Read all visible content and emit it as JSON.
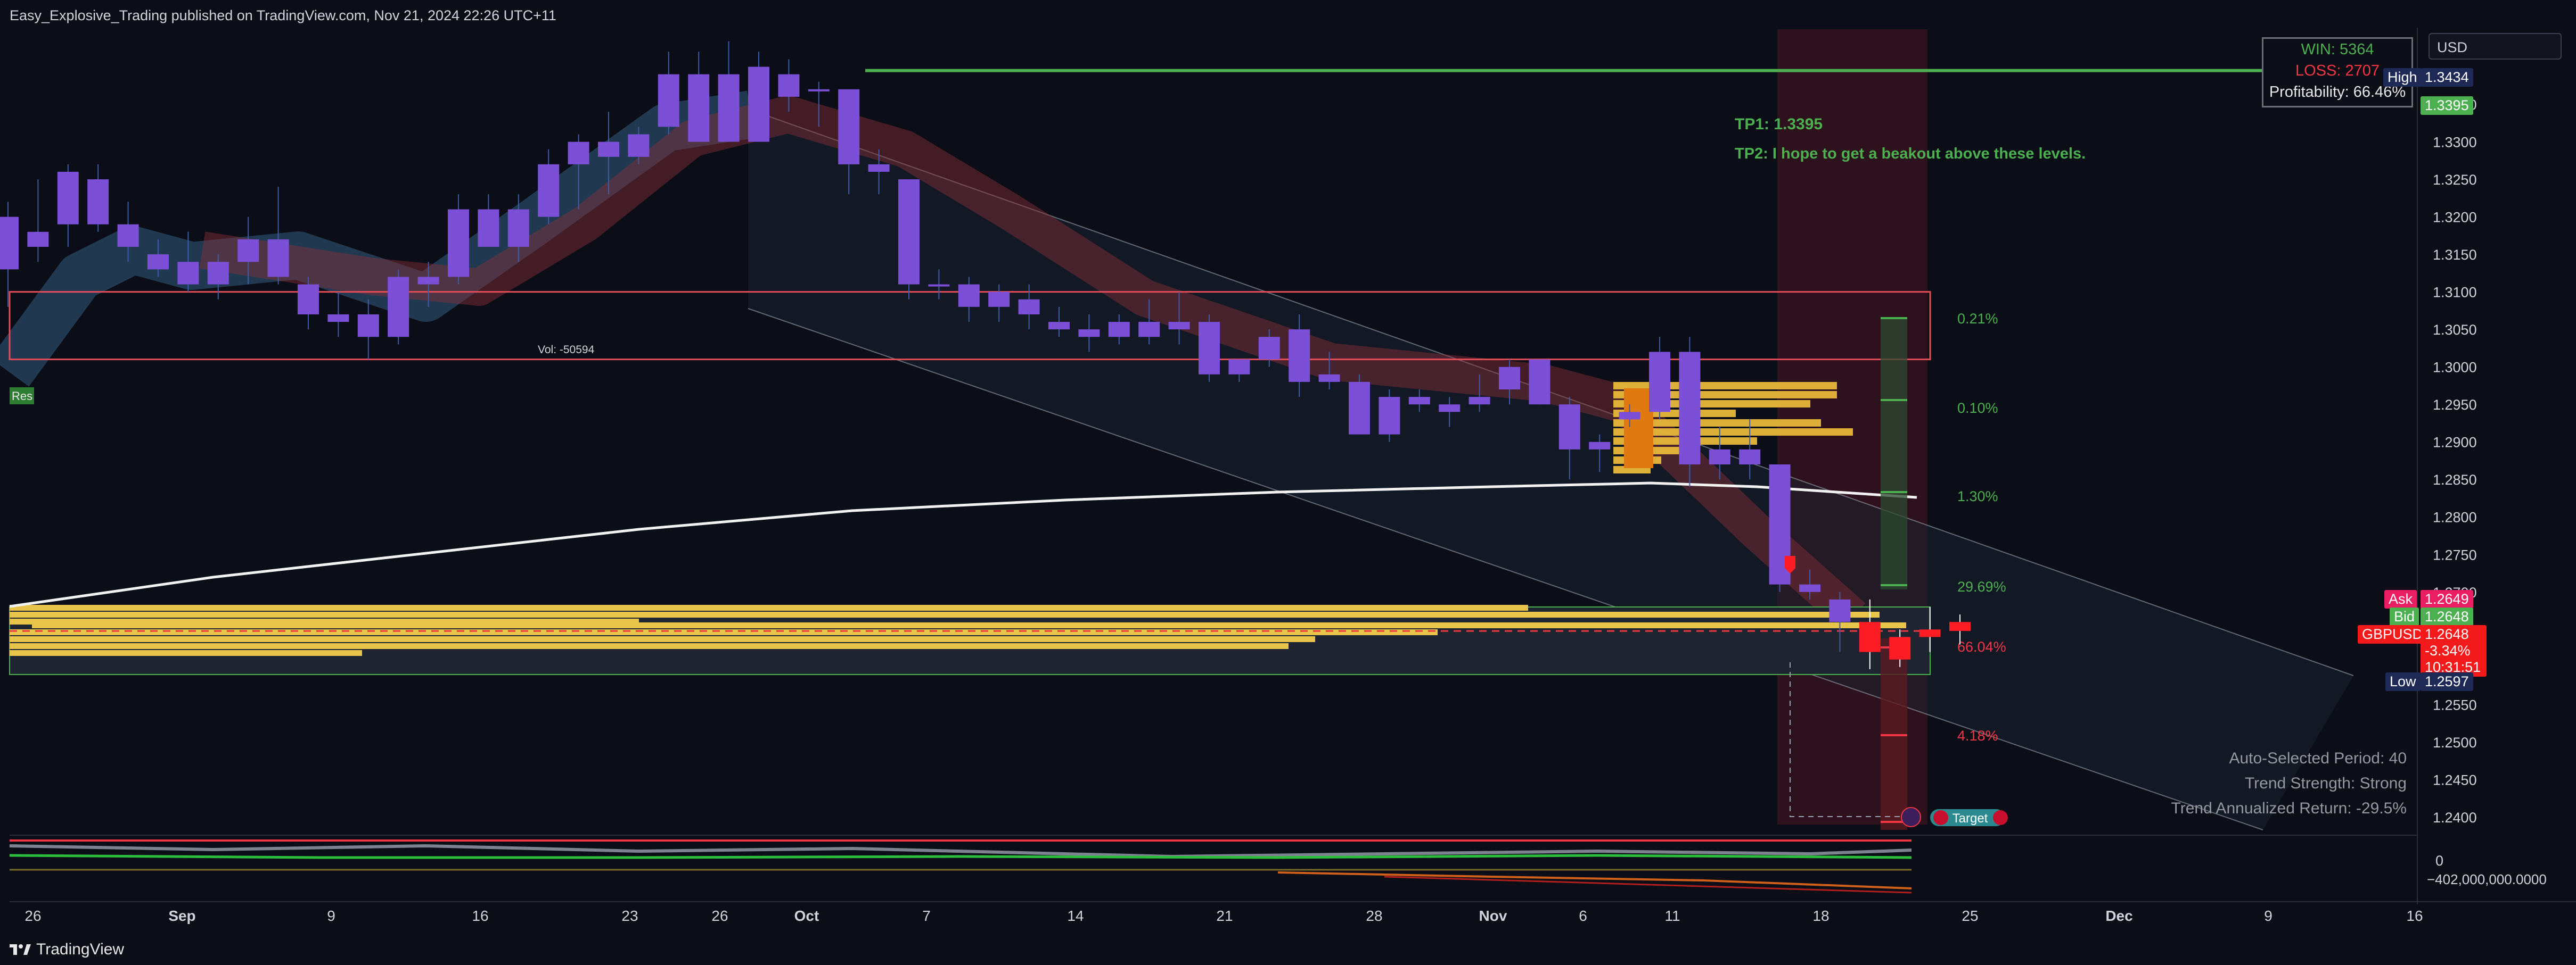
{
  "header": {
    "publisher_line": "Easy_Explosive_Trading published on TradingView.com, Nov 21, 2024 22:26 UTC+11"
  },
  "footer": {
    "brand": "TradingView"
  },
  "currency_button": {
    "label": "USD"
  },
  "stats": {
    "win": "WIN: 5364",
    "loss": "LOSS: 2707",
    "profitability": "Profitability: 66.46%"
  },
  "info_panel": {
    "period": "Auto-Selected Period: 40",
    "strength": "Trend Strength: Strong",
    "annualized": "Trend Annualized Return: -29.5%"
  },
  "annotations": {
    "tp1": "TP1: 1.3395",
    "tp2": "TP2: I hope to get a beakout above these levels.",
    "vol": "Vol: -50594",
    "res": "Res",
    "target": "Target",
    "pct_levels": [
      "0.21%",
      "0.10%",
      "1.30%",
      "29.69%",
      "66.04%",
      "4.18%"
    ]
  },
  "price_labels": {
    "high_tag": "High",
    "high_value": "1.3434",
    "tp_value": "1.3395",
    "ask_tag": "Ask",
    "ask_value": "1.2649",
    "bid_tag": "Bid",
    "bid_value": "1.2648",
    "symbol": "GBPUSD",
    "last": "1.2648",
    "change": "-3.34%",
    "countdown": "10:31:51",
    "low_tag": "Low",
    "low_value": "1.2597",
    "osc_zero": "0",
    "osc_low": "−402,000,000.0000"
  },
  "colors": {
    "background": "#0b0e17",
    "candle": "#7b4fd6",
    "tp_line": "#4caf50",
    "resistance": "#e24d5a",
    "support": "#e6c54a",
    "ema": "#f2f2f2",
    "down": "#ff1d25"
  },
  "chart_data": {
    "type": "candlestick",
    "symbol": "GBPUSD",
    "y_ticks": [
      "1.3350",
      "1.3300",
      "1.3250",
      "1.3200",
      "1.3150",
      "1.3100",
      "1.3050",
      "1.3000",
      "1.2950",
      "1.2900",
      "1.2850",
      "1.2800",
      "1.2750",
      "1.2700",
      "1.2650",
      "1.2600",
      "1.2550",
      "1.2500",
      "1.2450",
      "1.2400"
    ],
    "x_ticks": [
      "26",
      "Sep",
      "9",
      "16",
      "23",
      "26",
      "Oct",
      "7",
      "14",
      "21",
      "28",
      "Nov",
      "6",
      "11",
      "18",
      "25",
      "Dec",
      "9",
      "16"
    ],
    "ylim": [
      1.239,
      1.345
    ],
    "candles": [
      {
        "o": 1.313,
        "h": 1.322,
        "l": 1.308,
        "c": 1.32
      },
      {
        "o": 1.316,
        "h": 1.325,
        "l": 1.314,
        "c": 1.318
      },
      {
        "o": 1.319,
        "h": 1.327,
        "l": 1.316,
        "c": 1.326
      },
      {
        "o": 1.325,
        "h": 1.327,
        "l": 1.318,
        "c": 1.319
      },
      {
        "o": 1.319,
        "h": 1.322,
        "l": 1.314,
        "c": 1.316
      },
      {
        "o": 1.315,
        "h": 1.317,
        "l": 1.312,
        "c": 1.313
      },
      {
        "o": 1.314,
        "h": 1.318,
        "l": 1.31,
        "c": 1.311
      },
      {
        "o": 1.311,
        "h": 1.315,
        "l": 1.309,
        "c": 1.314
      },
      {
        "o": 1.314,
        "h": 1.32,
        "l": 1.311,
        "c": 1.317
      },
      {
        "o": 1.317,
        "h": 1.324,
        "l": 1.311,
        "c": 1.312
      },
      {
        "o": 1.311,
        "h": 1.312,
        "l": 1.305,
        "c": 1.307
      },
      {
        "o": 1.307,
        "h": 1.31,
        "l": 1.304,
        "c": 1.306
      },
      {
        "o": 1.307,
        "h": 1.309,
        "l": 1.301,
        "c": 1.304
      },
      {
        "o": 1.304,
        "h": 1.313,
        "l": 1.303,
        "c": 1.312
      },
      {
        "o": 1.312,
        "h": 1.314,
        "l": 1.308,
        "c": 1.311
      },
      {
        "o": 1.312,
        "h": 1.323,
        "l": 1.311,
        "c": 1.321
      },
      {
        "o": 1.321,
        "h": 1.323,
        "l": 1.316,
        "c": 1.316
      },
      {
        "o": 1.316,
        "h": 1.323,
        "l": 1.314,
        "c": 1.321
      },
      {
        "o": 1.32,
        "h": 1.329,
        "l": 1.319,
        "c": 1.327
      },
      {
        "o": 1.327,
        "h": 1.331,
        "l": 1.321,
        "c": 1.33
      },
      {
        "o": 1.33,
        "h": 1.334,
        "l": 1.323,
        "c": 1.328
      },
      {
        "o": 1.328,
        "h": 1.332,
        "l": 1.327,
        "c": 1.331
      },
      {
        "o": 1.332,
        "h": 1.342,
        "l": 1.331,
        "c": 1.339
      },
      {
        "o": 1.339,
        "h": 1.342,
        "l": 1.33,
        "c": 1.33
      },
      {
        "o": 1.33,
        "h": 1.3434,
        "l": 1.33,
        "c": 1.339
      },
      {
        "o": 1.34,
        "h": 1.342,
        "l": 1.33,
        "c": 1.33
      },
      {
        "o": 1.339,
        "h": 1.341,
        "l": 1.334,
        "c": 1.336
      },
      {
        "o": 1.337,
        "h": 1.338,
        "l": 1.332,
        "c": 1.337
      },
      {
        "o": 1.337,
        "h": 1.337,
        "l": 1.323,
        "c": 1.327
      },
      {
        "o": 1.327,
        "h": 1.329,
        "l": 1.323,
        "c": 1.326
      },
      {
        "o": 1.325,
        "h": 1.325,
        "l": 1.309,
        "c": 1.311
      },
      {
        "o": 1.311,
        "h": 1.313,
        "l": 1.309,
        "c": 1.311
      },
      {
        "o": 1.311,
        "h": 1.312,
        "l": 1.306,
        "c": 1.308
      },
      {
        "o": 1.308,
        "h": 1.311,
        "l": 1.306,
        "c": 1.31
      },
      {
        "o": 1.309,
        "h": 1.311,
        "l": 1.305,
        "c": 1.307
      },
      {
        "o": 1.306,
        "h": 1.308,
        "l": 1.304,
        "c": 1.305
      },
      {
        "o": 1.305,
        "h": 1.307,
        "l": 1.302,
        "c": 1.304
      },
      {
        "o": 1.304,
        "h": 1.307,
        "l": 1.303,
        "c": 1.306
      },
      {
        "o": 1.306,
        "h": 1.309,
        "l": 1.303,
        "c": 1.304
      },
      {
        "o": 1.305,
        "h": 1.31,
        "l": 1.303,
        "c": 1.306
      },
      {
        "o": 1.306,
        "h": 1.307,
        "l": 1.298,
        "c": 1.299
      },
      {
        "o": 1.299,
        "h": 1.301,
        "l": 1.298,
        "c": 1.301
      },
      {
        "o": 1.301,
        "h": 1.305,
        "l": 1.3,
        "c": 1.304
      },
      {
        "o": 1.305,
        "h": 1.307,
        "l": 1.296,
        "c": 1.298
      },
      {
        "o": 1.299,
        "h": 1.302,
        "l": 1.297,
        "c": 1.298
      },
      {
        "o": 1.298,
        "h": 1.299,
        "l": 1.291,
        "c": 1.291
      },
      {
        "o": 1.291,
        "h": 1.297,
        "l": 1.29,
        "c": 1.296
      },
      {
        "o": 1.296,
        "h": 1.297,
        "l": 1.294,
        "c": 1.295
      },
      {
        "o": 1.295,
        "h": 1.296,
        "l": 1.292,
        "c": 1.294
      },
      {
        "o": 1.295,
        "h": 1.299,
        "l": 1.294,
        "c": 1.296
      },
      {
        "o": 1.297,
        "h": 1.301,
        "l": 1.295,
        "c": 1.3
      },
      {
        "o": 1.301,
        "h": 1.301,
        "l": 1.295,
        "c": 1.295
      },
      {
        "o": 1.295,
        "h": 1.296,
        "l": 1.285,
        "c": 1.289
      },
      {
        "o": 1.289,
        "h": 1.291,
        "l": 1.286,
        "c": 1.29
      },
      {
        "o": 1.293,
        "h": 1.295,
        "l": 1.292,
        "c": 1.294
      },
      {
        "o": 1.294,
        "h": 1.304,
        "l": 1.293,
        "c": 1.302
      },
      {
        "o": 1.302,
        "h": 1.304,
        "l": 1.284,
        "c": 1.287
      },
      {
        "o": 1.287,
        "h": 1.292,
        "l": 1.285,
        "c": 1.289
      },
      {
        "o": 1.289,
        "h": 1.293,
        "l": 1.285,
        "c": 1.287
      },
      {
        "o": 1.287,
        "h": 1.287,
        "l": 1.27,
        "c": 1.271
      },
      {
        "o": 1.271,
        "h": 1.273,
        "l": 1.269,
        "c": 1.27
      },
      {
        "o": 1.269,
        "h": 1.27,
        "l": 1.262,
        "c": 1.266
      },
      {
        "o": 1.266,
        "h": 1.269,
        "l": 1.2597,
        "c": 1.262
      },
      {
        "o": 1.264,
        "h": 1.265,
        "l": 1.26,
        "c": 1.261
      },
      {
        "o": 1.264,
        "h": 1.268,
        "l": 1.262,
        "c": 1.265
      },
      {
        "o": 1.266,
        "h": 1.267,
        "l": 1.263,
        "c": 1.2648
      }
    ],
    "levels": {
      "tp1": 1.3395,
      "resistance_zone": [
        1.301,
        1.31
      ],
      "support_zone": [
        1.259,
        1.268
      ],
      "dashed_entry": 1.2648
    },
    "title": "",
    "xlabel": "",
    "ylabel": ""
  }
}
